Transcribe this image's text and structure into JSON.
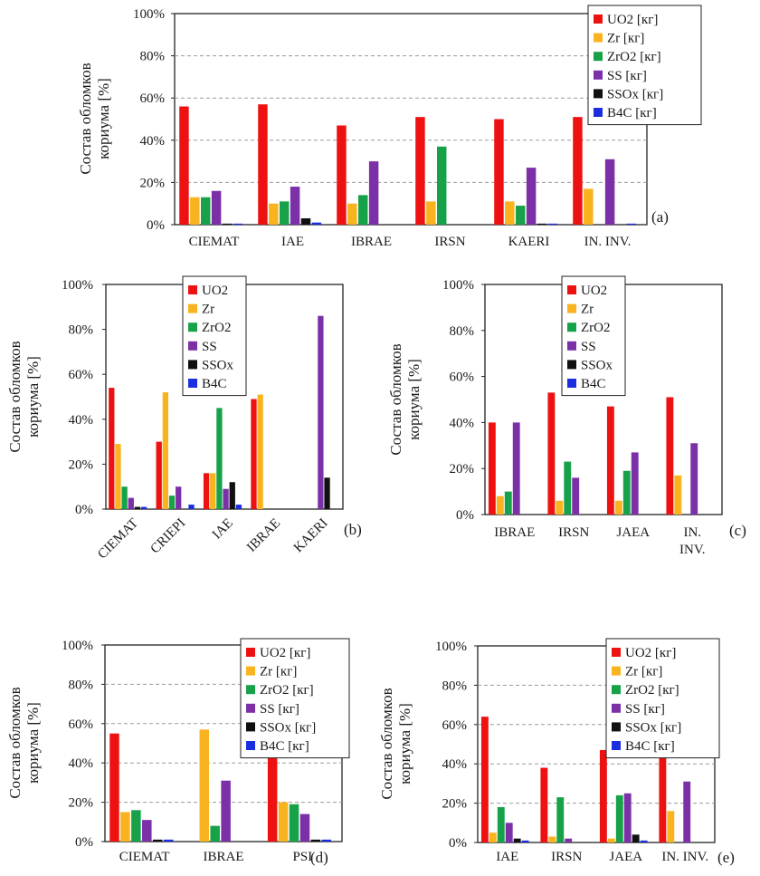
{
  "chart_data": [
    {
      "type": "bar",
      "panel_label": "(a)",
      "ylabel": "Состав обломков кориума [%]",
      "ylim": [
        0,
        100
      ],
      "yticks": [
        "0%",
        "20%",
        "40%",
        "60%",
        "80%",
        "100%"
      ],
      "grid": true,
      "legend_position": "top-right",
      "categories": [
        "CIEMAT",
        "IAE",
        "IBRAE",
        "IRSN",
        "KAERI",
        "IN. INV."
      ],
      "series": [
        {
          "name": "UO2 [кг]",
          "color": "#ee1111",
          "values": [
            56,
            57,
            47,
            51,
            50,
            51
          ]
        },
        {
          "name": "Zr [кг]",
          "color": "#f9b31f",
          "values": [
            13,
            10,
            10,
            11,
            11,
            17
          ]
        },
        {
          "name": "ZrO2 [кг]",
          "color": "#17a24a",
          "values": [
            13,
            11,
            14,
            37,
            9,
            0
          ]
        },
        {
          "name": "SS [кг]",
          "color": "#7c30a8",
          "values": [
            16,
            18,
            30,
            0,
            27,
            31
          ]
        },
        {
          "name": "SSOx [кг]",
          "color": "#101010",
          "values": [
            0.5,
            3,
            0,
            0,
            0.5,
            0
          ]
        },
        {
          "name": "B4C [кг]",
          "color": "#1a2ee0",
          "values": [
            0.5,
            1,
            0,
            0,
            0.5,
            0.5
          ]
        }
      ]
    },
    {
      "type": "bar",
      "panel_label": "(b)",
      "ylabel": "Состав обломков кориума [%]",
      "ylim": [
        0,
        100
      ],
      "yticks": [
        "0%",
        "20%",
        "40%",
        "60%",
        "80%",
        "100%"
      ],
      "grid": false,
      "legend_position": "top-left",
      "categories": [
        "CIEMAT",
        "CRIEPI",
        "IAE",
        "IBRAE",
        "KAERI"
      ],
      "series": [
        {
          "name": "UO2",
          "color": "#ee1111",
          "values": [
            54,
            30,
            16,
            49,
            0
          ]
        },
        {
          "name": "Zr",
          "color": "#f9b31f",
          "values": [
            29,
            52,
            16,
            51,
            0
          ]
        },
        {
          "name": "ZrO2",
          "color": "#17a24a",
          "values": [
            10,
            6,
            45,
            0,
            0
          ]
        },
        {
          "name": "SS",
          "color": "#7c30a8",
          "values": [
            5,
            10,
            9,
            0,
            86
          ]
        },
        {
          "name": "SSOx",
          "color": "#101010",
          "values": [
            1,
            0,
            12,
            0,
            14
          ]
        },
        {
          "name": "B4C",
          "color": "#1a2ee0",
          "values": [
            1,
            2,
            2,
            0,
            0
          ]
        }
      ]
    },
    {
      "type": "bar",
      "panel_label": "(c)",
      "ylabel": "Состав обломков кориума [%]",
      "ylim": [
        0,
        100
      ],
      "yticks": [
        "0%",
        "20%",
        "40%",
        "60%",
        "80%",
        "100%"
      ],
      "grid": false,
      "legend_position": "top-left",
      "categories": [
        "IBRAE",
        "IRSN",
        "JAEA",
        "IN. INV."
      ],
      "series": [
        {
          "name": "UO2",
          "color": "#ee1111",
          "values": [
            40,
            53,
            47,
            51
          ]
        },
        {
          "name": "Zr",
          "color": "#f9b31f",
          "values": [
            8,
            6,
            6,
            17
          ]
        },
        {
          "name": "ZrO2",
          "color": "#17a24a",
          "values": [
            10,
            23,
            19,
            0
          ]
        },
        {
          "name": "SS",
          "color": "#7c30a8",
          "values": [
            40,
            16,
            27,
            31
          ]
        },
        {
          "name": "SSOx",
          "color": "#101010",
          "values": [
            0,
            0,
            0,
            0
          ]
        },
        {
          "name": "B4C",
          "color": "#1a2ee0",
          "values": [
            0,
            0,
            0,
            0
          ]
        }
      ]
    },
    {
      "type": "bar",
      "panel_label": "(d)",
      "ylabel": "Состав обломков кориума [%]",
      "ylim": [
        0,
        100
      ],
      "yticks": [
        "0%",
        "20%",
        "40%",
        "60%",
        "80%",
        "100%"
      ],
      "grid": true,
      "legend_position": "top-right",
      "categories": [
        "CIEMAT",
        "IBRAE",
        "PSI"
      ],
      "series": [
        {
          "name": "UO2 [кг]",
          "color": "#ee1111",
          "values": [
            55,
            0,
            44
          ]
        },
        {
          "name": "Zr [кг]",
          "color": "#f9b31f",
          "values": [
            15,
            57,
            20
          ]
        },
        {
          "name": "ZrO2 [кг]",
          "color": "#17a24a",
          "values": [
            16,
            8,
            19
          ]
        },
        {
          "name": "SS [кг]",
          "color": "#7c30a8",
          "values": [
            11,
            31,
            14
          ]
        },
        {
          "name": "SSOx [кг]",
          "color": "#101010",
          "values": [
            1,
            0,
            1
          ]
        },
        {
          "name": "B4C [кг]",
          "color": "#1a2ee0",
          "values": [
            1,
            0,
            1
          ]
        }
      ]
    },
    {
      "type": "bar",
      "panel_label": "(e)",
      "ylabel": "Состав обломков кориума [%]",
      "ylim": [
        0,
        100
      ],
      "yticks": [
        "0%",
        "20%",
        "40%",
        "60%",
        "80%",
        "100%"
      ],
      "grid": true,
      "legend_position": "top-right",
      "categories": [
        "IAE",
        "IRSN",
        "JAEA",
        "IN. INV."
      ],
      "series": [
        {
          "name": "UO2 [кг]",
          "color": "#ee1111",
          "values": [
            64,
            38,
            47,
            52
          ]
        },
        {
          "name": "Zr [кг]",
          "color": "#f9b31f",
          "values": [
            5,
            3,
            2,
            16
          ]
        },
        {
          "name": "ZrO2 [кг]",
          "color": "#17a24a",
          "values": [
            18,
            23,
            24,
            0
          ]
        },
        {
          "name": "SS [кг]",
          "color": "#7c30a8",
          "values": [
            10,
            2,
            25,
            31
          ]
        },
        {
          "name": "SSOx [кг]",
          "color": "#101010",
          "values": [
            2,
            0,
            4,
            0
          ]
        },
        {
          "name": "B4C [кг]",
          "color": "#1a2ee0",
          "values": [
            1,
            0,
            1,
            0
          ]
        }
      ]
    }
  ]
}
